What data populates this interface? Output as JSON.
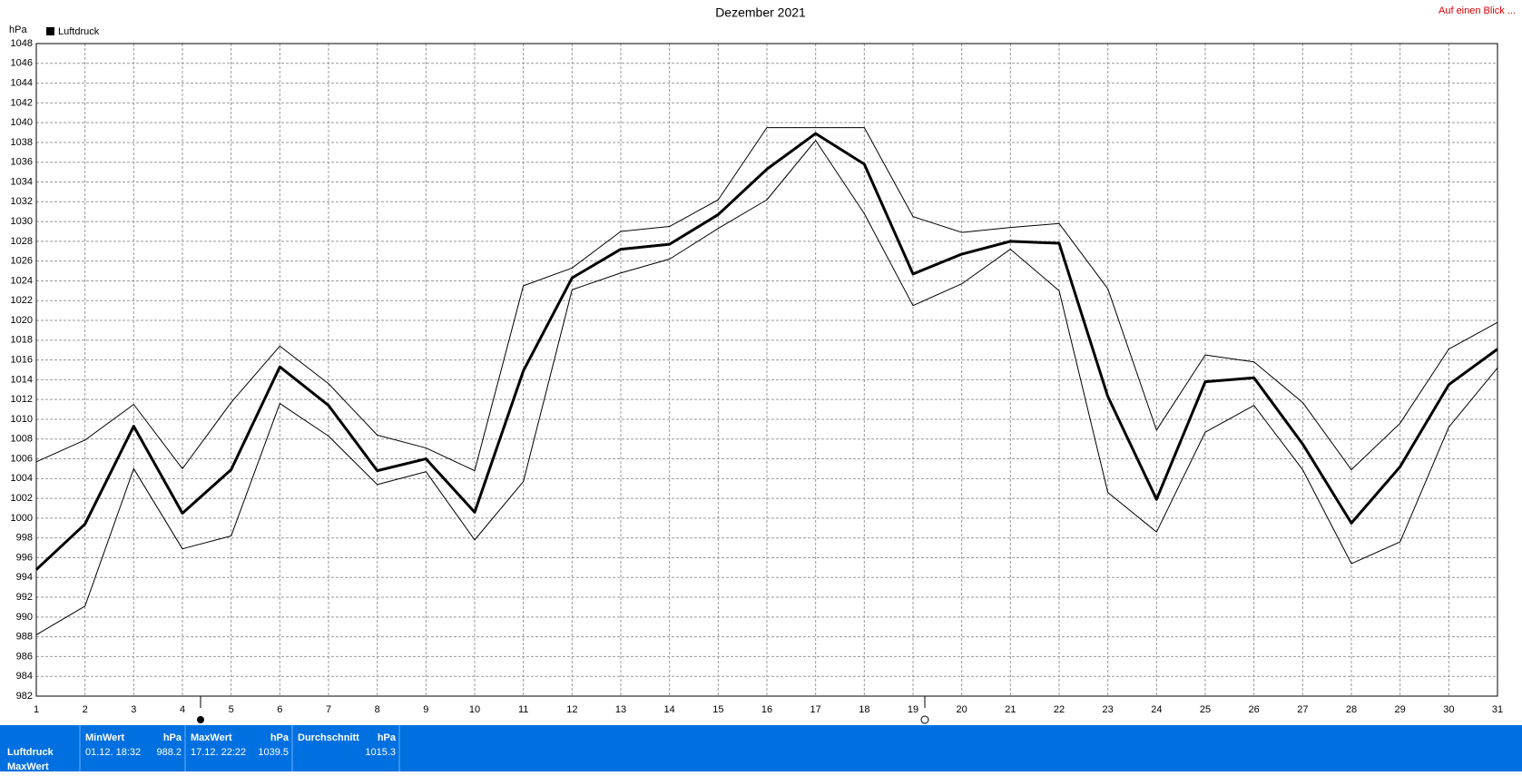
{
  "chart_data": {
    "type": "line",
    "title": "Dezember 2021",
    "ylabel": "hPa",
    "link": "Auf einen Blick ...",
    "x": [
      1,
      2,
      3,
      4,
      5,
      6,
      7,
      8,
      9,
      10,
      11,
      12,
      13,
      14,
      15,
      16,
      17,
      18,
      19,
      20,
      21,
      22,
      23,
      24,
      25,
      26,
      27,
      28,
      29,
      30,
      31
    ],
    "xlim": [
      1,
      31
    ],
    "xticks": [
      1,
      2,
      3,
      4,
      5,
      6,
      7,
      8,
      9,
      10,
      11,
      12,
      13,
      14,
      15,
      16,
      17,
      18,
      19,
      20,
      21,
      22,
      23,
      24,
      25,
      26,
      27,
      28,
      29,
      30,
      31
    ],
    "ylim": [
      982,
      1048
    ],
    "yticks": [
      982,
      984,
      986,
      988,
      990,
      992,
      994,
      996,
      998,
      1000,
      1002,
      1004,
      1006,
      1008,
      1010,
      1012,
      1014,
      1016,
      1018,
      1020,
      1022,
      1024,
      1026,
      1028,
      1030,
      1032,
      1034,
      1036,
      1038,
      1040,
      1042,
      1044,
      1046,
      1048
    ],
    "grid": true,
    "legend": "top-left",
    "series": [
      {
        "name": "Luftdruck",
        "color": "#000000",
        "width": 3,
        "values": [
          994.8,
          999.4,
          1009.3,
          1000.5,
          1004.9,
          1015.3,
          1011.4,
          1004.8,
          1006.0,
          1000.6,
          1014.9,
          1024.3,
          1027.2,
          1027.7,
          1030.7,
          1035.3,
          1038.9,
          1035.8,
          1024.7,
          1026.7,
          1028.0,
          1027.8,
          1012.3,
          1001.9,
          1013.8,
          1014.2,
          1007.5,
          999.5,
          1005.2,
          1013.5,
          1017.1
        ]
      },
      {
        "color": "#000000",
        "width": 1,
        "values": [
          1005.7,
          1007.9,
          1011.5,
          1005.0,
          1011.7,
          1017.4,
          1013.6,
          1008.4,
          1007.1,
          1004.8,
          1023.5,
          1025.3,
          1029.0,
          1029.5,
          1032.2,
          1039.5,
          1039.5,
          1039.5,
          1030.5,
          1028.9,
          1029.4,
          1029.8,
          1023.2,
          1008.9,
          1016.5,
          1015.8,
          1011.7,
          1004.9,
          1009.6,
          1017.1,
          1019.8
        ]
      },
      {
        "color": "#000000",
        "width": 1,
        "values": [
          988.2,
          991.1,
          1005.0,
          996.9,
          998.2,
          1011.6,
          1008.3,
          1003.4,
          1004.7,
          997.8,
          1003.7,
          1023.1,
          1024.8,
          1026.2,
          1029.3,
          1032.2,
          1038.2,
          1030.8,
          1021.5,
          1023.7,
          1027.2,
          1023.0,
          1002.6,
          998.6,
          1008.7,
          1011.4,
          1004.9,
          995.4,
          997.6,
          1009.2,
          1015.2
        ]
      }
    ]
  },
  "summary": {
    "columns": [
      {
        "label": "MinWert",
        "unit": "hPa"
      },
      {
        "label": "MaxWert",
        "unit": "hPa"
      },
      {
        "label": "Durchschnitt",
        "unit": "hPa"
      }
    ],
    "rows": [
      {
        "label": "Luftdruck",
        "cells": [
          {
            "time": "01.12.  18:32",
            "value": "988.2"
          },
          {
            "time": "17.12.  22:22",
            "value": "1039.5"
          },
          {
            "value": "1015.3"
          }
        ]
      },
      {
        "label": "MaxWert"
      }
    ]
  }
}
